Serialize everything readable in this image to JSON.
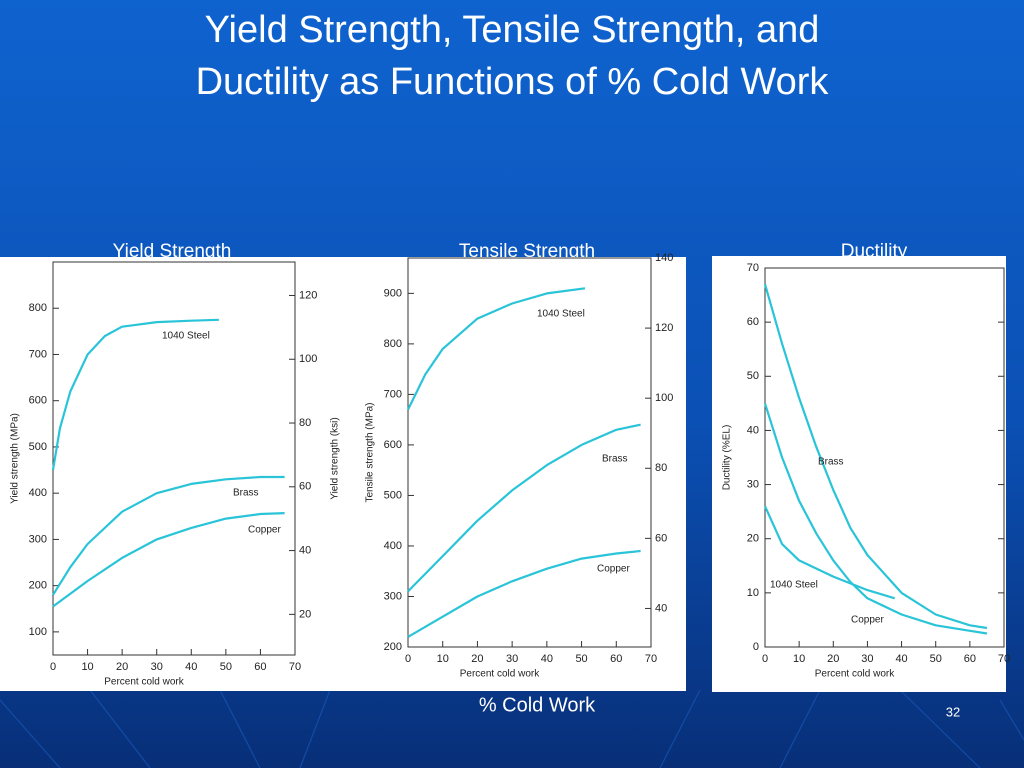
{
  "slide": {
    "title_lines": [
      "Yield Strength, Tensile Strength, and",
      "Ductility as Functions of % Cold Work"
    ],
    "panel_labels": [
      "Yield Strength",
      "Tensile Strength",
      "Ductility"
    ],
    "x_caption": "% Cold Work",
    "page_number": "32"
  },
  "chart_data": [
    {
      "type": "line",
      "xlabel": "Percent cold work",
      "ylabel": "Yield strength (MPa)",
      "y2label": "Yield strength (ksi)",
      "xlim": [
        0,
        70
      ],
      "xticks": [
        0,
        10,
        20,
        30,
        40,
        50,
        60,
        70
      ],
      "ylim": [
        50,
        900
      ],
      "yticks": [
        100,
        200,
        300,
        400,
        500,
        600,
        700,
        800
      ],
      "y2lim": [
        7.25,
        130.5
      ],
      "y2ticks": [
        20,
        40,
        60,
        80,
        100,
        120
      ],
      "series": [
        {
          "name": "1040 Steel",
          "color": "#29c4d8",
          "x": [
            0,
            2,
            5,
            10,
            15,
            20,
            30,
            40,
            48
          ],
          "values": [
            450,
            540,
            620,
            700,
            740,
            760,
            770,
            773,
            775
          ]
        },
        {
          "name": "Brass",
          "color": "#29c4d8",
          "x": [
            0,
            5,
            10,
            20,
            30,
            40,
            50,
            60,
            67
          ],
          "values": [
            180,
            240,
            290,
            360,
            400,
            420,
            430,
            435,
            435
          ]
        },
        {
          "name": "Copper",
          "color": "#29c4d8",
          "x": [
            0,
            10,
            20,
            30,
            40,
            50,
            60,
            67
          ],
          "values": [
            155,
            210,
            260,
            300,
            325,
            345,
            355,
            357
          ]
        }
      ]
    },
    {
      "type": "line",
      "xlabel": "Percent cold work",
      "ylabel": "Tensile strength (MPa)",
      "xlim": [
        0,
        70
      ],
      "xticks": [
        0,
        10,
        20,
        30,
        40,
        50,
        60,
        70
      ],
      "ylim": [
        200,
        970
      ],
      "yticks": [
        200,
        300,
        400,
        500,
        600,
        700,
        800,
        900
      ],
      "y2lim": [
        29,
        140
      ],
      "y2ticks": [
        40,
        60,
        80,
        100,
        120,
        140
      ],
      "series": [
        {
          "name": "1040 Steel",
          "color": "#29c4d8",
          "x": [
            0,
            5,
            10,
            20,
            30,
            40,
            51
          ],
          "values": [
            670,
            740,
            790,
            850,
            880,
            900,
            910
          ]
        },
        {
          "name": "Brass",
          "color": "#29c4d8",
          "x": [
            0,
            10,
            20,
            30,
            40,
            50,
            60,
            67
          ],
          "values": [
            310,
            380,
            450,
            510,
            560,
            600,
            630,
            640
          ]
        },
        {
          "name": "Copper",
          "color": "#29c4d8",
          "x": [
            0,
            10,
            20,
            30,
            40,
            50,
            60,
            67
          ],
          "values": [
            220,
            260,
            300,
            330,
            355,
            375,
            385,
            390
          ]
        }
      ]
    },
    {
      "type": "line",
      "xlabel": "Percent cold work",
      "ylabel": "Ductility (%EL)",
      "xlim": [
        0,
        70
      ],
      "xticks": [
        0,
        10,
        20,
        30,
        40,
        50,
        60,
        70
      ],
      "ylim": [
        0,
        70
      ],
      "yticks": [
        0,
        10,
        20,
        30,
        40,
        50,
        60,
        70
      ],
      "series": [
        {
          "name": "Brass",
          "color": "#29c4d8",
          "x": [
            0,
            5,
            10,
            15,
            20,
            25,
            30,
            40,
            50,
            60,
            65
          ],
          "values": [
            67,
            56,
            46,
            37,
            29,
            22,
            17,
            10,
            6,
            4,
            3.5
          ]
        },
        {
          "name": "1040 Steel",
          "color": "#29c4d8",
          "x": [
            0,
            5,
            10,
            20,
            30,
            38
          ],
          "values": [
            26,
            19,
            16,
            13,
            10.5,
            9
          ]
        },
        {
          "name": "Copper",
          "color": "#29c4d8",
          "x": [
            0,
            5,
            10,
            15,
            20,
            25,
            30,
            40,
            50,
            60,
            65
          ],
          "values": [
            45,
            35,
            27,
            21,
            16,
            12,
            9,
            6,
            4,
            3,
            2.5
          ]
        }
      ]
    }
  ]
}
